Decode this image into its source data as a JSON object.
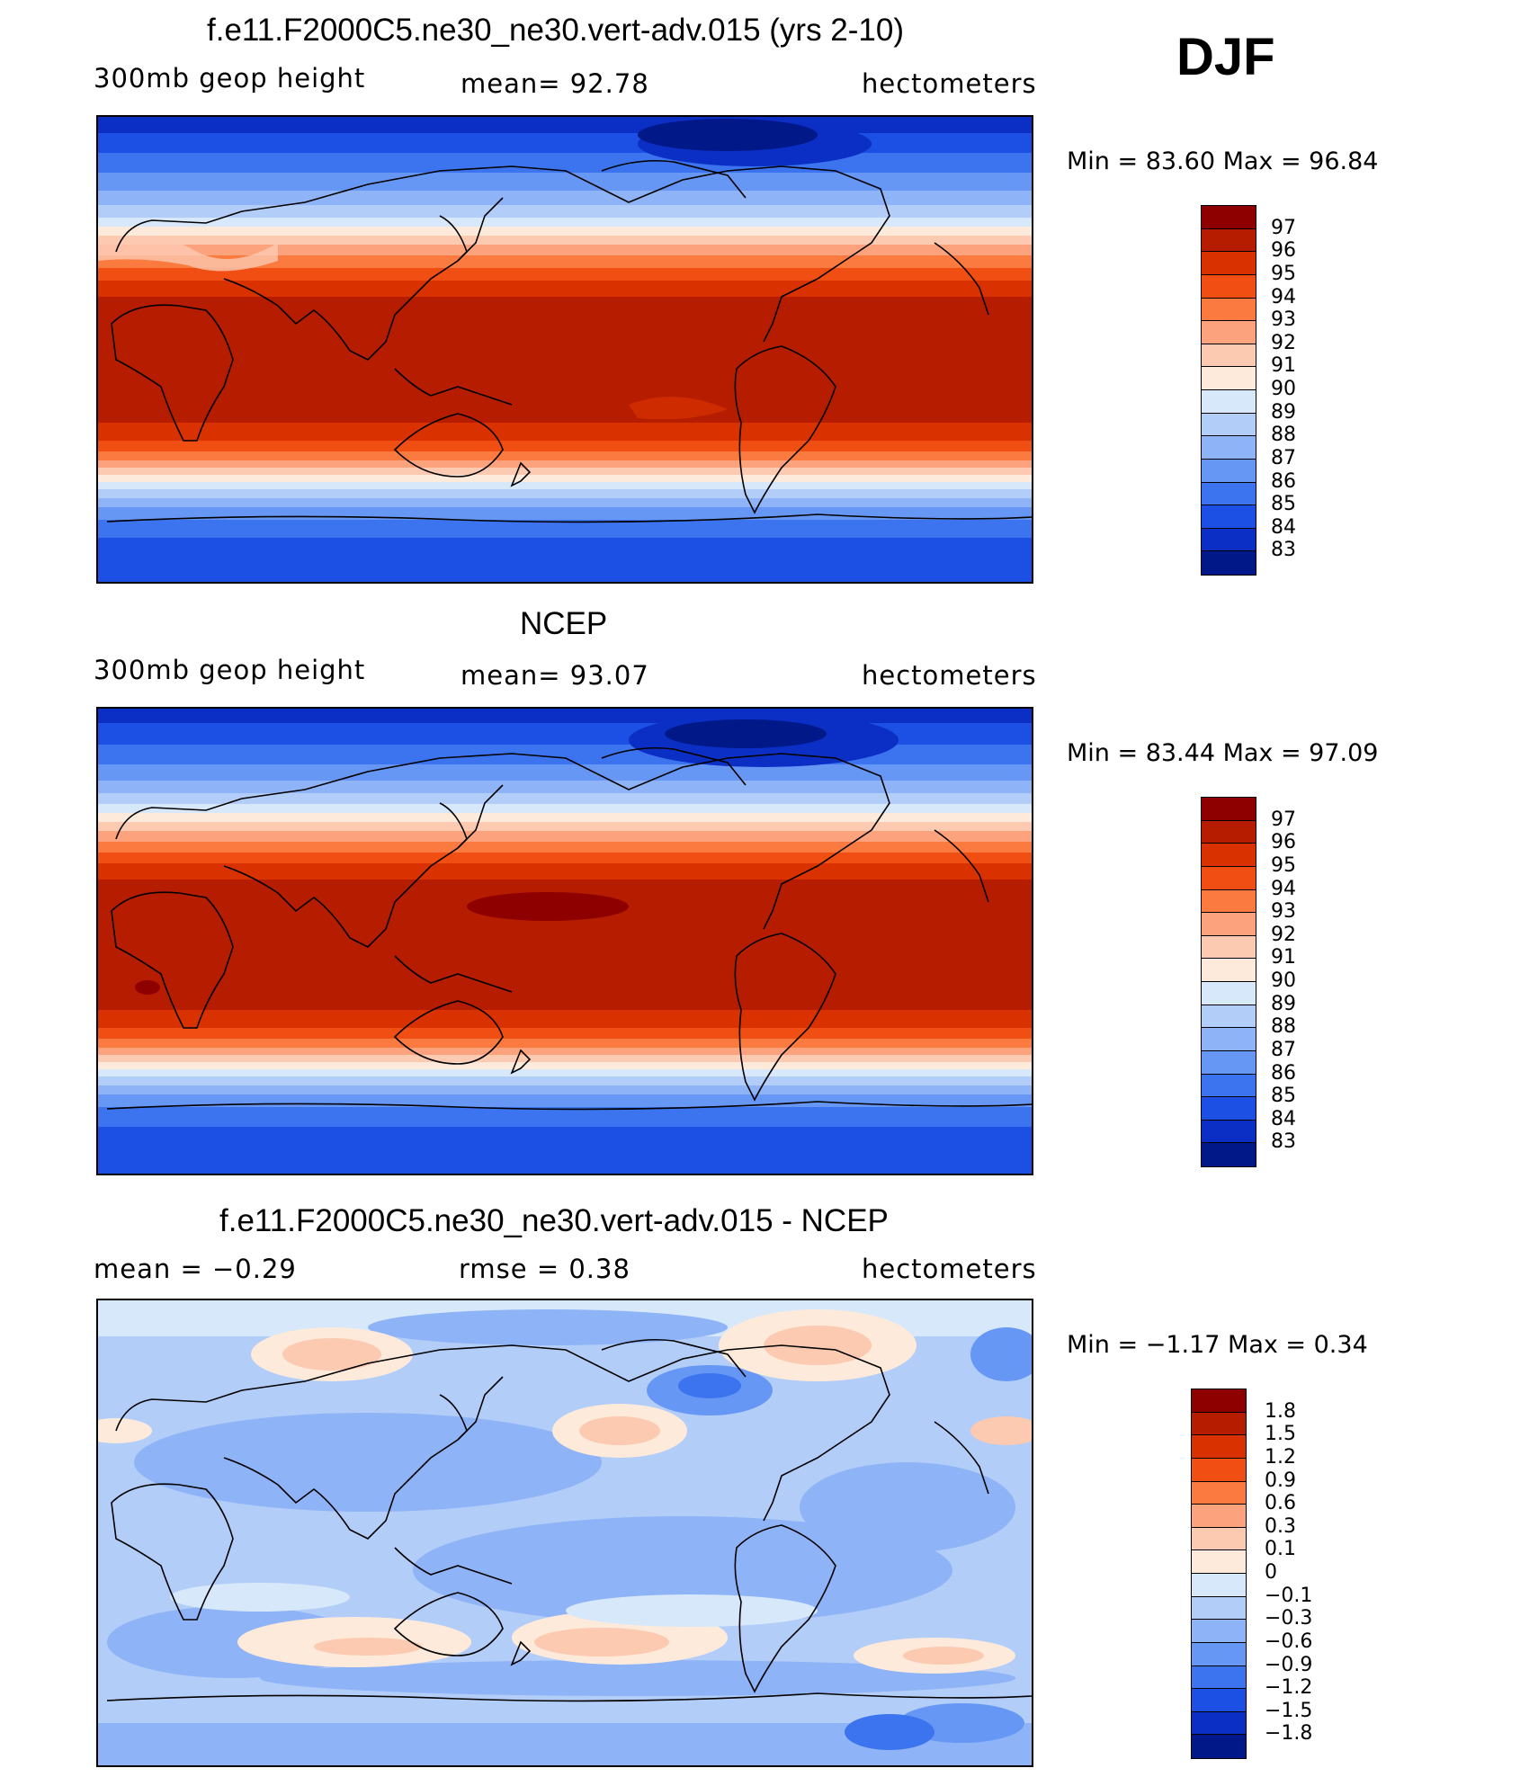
{
  "season": "DJF",
  "panels": [
    {
      "id": "model",
      "title": "f.e11.F2000C5.ne30_ne30.vert-adv.015 (yrs 2-10)",
      "left_label": "300mb  geop  height",
      "center_label": "mean=   92.78",
      "units": "hectometers",
      "minmax": "Min  =     83.60  Max  =     96.84",
      "colorbar": {
        "colors": [
          "#8e0000",
          "#b51c00",
          "#d93200",
          "#f04e12",
          "#fb7a3f",
          "#fca37e",
          "#fcc9b1",
          "#fdeadb",
          "#d7e8fb",
          "#b2cdf8",
          "#8eb3f6",
          "#6797f4",
          "#3c73ee",
          "#1c4fe3",
          "#0b2fc5",
          "#001888"
        ],
        "ticks": [
          "97",
          "96",
          "95",
          "94",
          "93",
          "92",
          "91",
          "90",
          "89",
          "88",
          "87",
          "86",
          "85",
          "84",
          "83"
        ]
      }
    },
    {
      "id": "obs",
      "title": "NCEP",
      "left_label": "300mb  geop  height",
      "center_label": "mean=   93.07",
      "units": "hectometers",
      "minmax": "Min  =     83.44  Max  =     97.09",
      "colorbar": {
        "colors": [
          "#8e0000",
          "#b51c00",
          "#d93200",
          "#f04e12",
          "#fb7a3f",
          "#fca37e",
          "#fcc9b1",
          "#fdeadb",
          "#d7e8fb",
          "#b2cdf8",
          "#8eb3f6",
          "#6797f4",
          "#3c73ee",
          "#1c4fe3",
          "#0b2fc5",
          "#001888"
        ],
        "ticks": [
          "97",
          "96",
          "95",
          "94",
          "93",
          "92",
          "91",
          "90",
          "89",
          "88",
          "87",
          "86",
          "85",
          "84",
          "83"
        ]
      }
    },
    {
      "id": "diff",
      "title": "f.e11.F2000C5.ne30_ne30.vert-adv.015 - NCEP",
      "left_label": "mean  =    −0.29",
      "center_label": "rmse  =     0.38",
      "units": "hectometers",
      "minmax": "Min  =   −1.17  Max  =     0.34",
      "colorbar": {
        "colors": [
          "#8e0000",
          "#b51c00",
          "#d93200",
          "#f04e12",
          "#fb7a3f",
          "#fca37e",
          "#fcc9b1",
          "#fdeadb",
          "#d7e8fb",
          "#b2cdf8",
          "#8eb3f6",
          "#6797f4",
          "#3c73ee",
          "#1c4fe3",
          "#0b2fc5",
          "#001888"
        ],
        "ticks": [
          "1.8",
          "1.5",
          "1.2",
          "0.9",
          "0.6",
          "0.3",
          "0.1",
          "0",
          "−0.1",
          "−0.3",
          "−0.6",
          "−0.9",
          "−1.2",
          "−1.5",
          "−1.8"
        ]
      }
    }
  ]
}
